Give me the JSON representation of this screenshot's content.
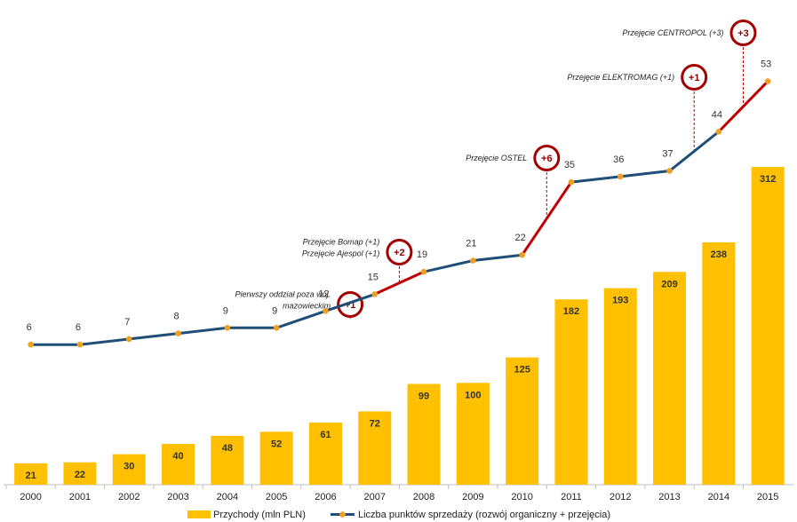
{
  "chart_data": {
    "type": "bar+line",
    "categories": [
      "2000",
      "2001",
      "2002",
      "2003",
      "2004",
      "2005",
      "2006",
      "2007",
      "2008",
      "2009",
      "2010",
      "2011",
      "2012",
      "2013",
      "2014",
      "2015"
    ],
    "series": [
      {
        "name": "Przychody (mln PLN)",
        "type": "bar",
        "color": "#FFC000",
        "values": [
          21,
          22,
          30,
          40,
          48,
          52,
          61,
          72,
          99,
          100,
          125,
          182,
          193,
          209,
          238,
          312
        ]
      },
      {
        "name": "Liczba punktów sprzedaży (rozwój organiczny + przejęcia)",
        "type": "line",
        "color": "#1F4E79",
        "acquisition_color": "#C00000",
        "marker_color": "#F0A020",
        "values": [
          6,
          6,
          7,
          8,
          9,
          9,
          12,
          15,
          19,
          21,
          22,
          35,
          36,
          37,
          44,
          53
        ]
      }
    ],
    "bar_ylim": [
      0,
      340
    ],
    "line_ylim": [
      -19,
      58
    ],
    "acquisition_segments": [
      {
        "from": "2007",
        "to": "2008"
      },
      {
        "from": "2010",
        "to": "2011"
      },
      {
        "from": "2014",
        "to": "2015"
      }
    ],
    "annotations": [
      {
        "lines": [
          "Pierwszy oddział poza woj.",
          "mazowieckim"
        ],
        "badge": "+1",
        "x_between": [
          "2006",
          "2007"
        ]
      },
      {
        "lines": [
          "Przejęcie Bomap (+1)",
          "Przejęcie Ajespol (+1)"
        ],
        "badge": "+2",
        "x_between": [
          "2007",
          "2008"
        ]
      },
      {
        "lines": [
          "Przejęcie OSTEL"
        ],
        "badge": "+6",
        "x_between": [
          "2010",
          "2011"
        ]
      },
      {
        "lines": [
          "Przejęcie ELEKTROMAG (+1)"
        ],
        "badge": "+1",
        "x_between": [
          "2013",
          "2014"
        ]
      },
      {
        "lines": [
          "Przejęcie CENTROPOL (+3)"
        ],
        "badge": "+3",
        "x_between": [
          "2014",
          "2015"
        ]
      }
    ],
    "legend": {
      "position": "bottom"
    }
  },
  "legend": {
    "bar_label": "Przychody (mln PLN)",
    "line_label": "Liczba punktów sprzedaży (rozwój organiczny + przejęcia)"
  },
  "colors": {
    "bar": "#FFC000",
    "line": "#1F4E79",
    "acquisition": "#C00000",
    "marker": "#F0A020",
    "axis": "#BFBFBF"
  }
}
